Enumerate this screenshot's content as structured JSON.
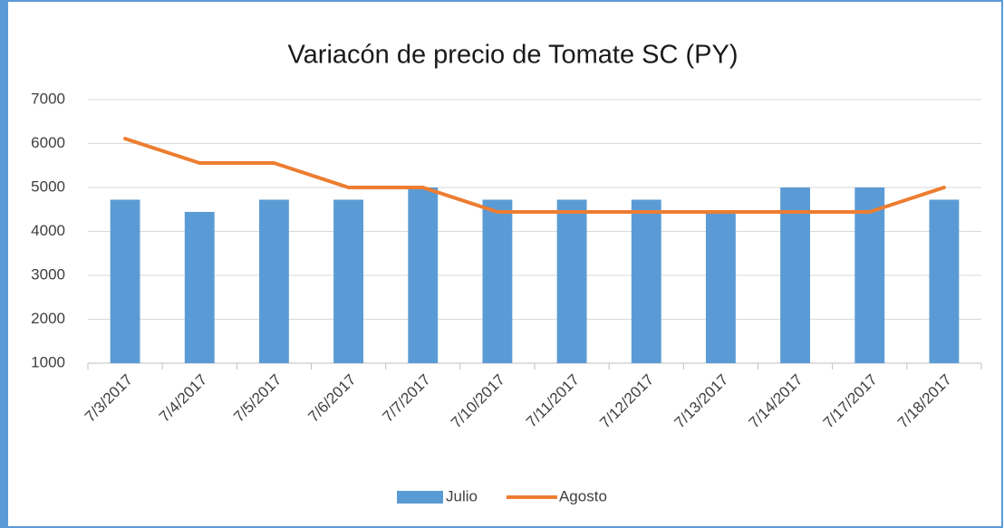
{
  "chart_data": {
    "type": "bar",
    "title": "Variacón de precio de Tomate SC (PY)",
    "categories": [
      "7/3/2017",
      "7/4/2017",
      "7/5/2017",
      "7/6/2017",
      "7/7/2017",
      "7/10/2017",
      "7/11/2017",
      "7/12/2017",
      "7/13/2017",
      "7/14/2017",
      "7/17/2017",
      "7/18/2017"
    ],
    "series": [
      {
        "name": "Julio",
        "type": "bar",
        "color": "#5b9bd5",
        "values": [
          4722,
          4444,
          4722,
          4722,
          5000,
          4722,
          4722,
          4722,
          4444,
          5000,
          5000,
          4722
        ]
      },
      {
        "name": "Agosto",
        "type": "line",
        "color": "#ed7d31",
        "values": [
          6111,
          5556,
          5556,
          5000,
          5000,
          4444,
          4444,
          4444,
          4444,
          4444,
          4444,
          5000
        ]
      }
    ],
    "ylim": [
      1000,
      7000
    ],
    "yticks": [
      1000,
      2000,
      3000,
      4000,
      5000,
      6000,
      7000
    ],
    "grid": true,
    "legend": "bottom"
  }
}
